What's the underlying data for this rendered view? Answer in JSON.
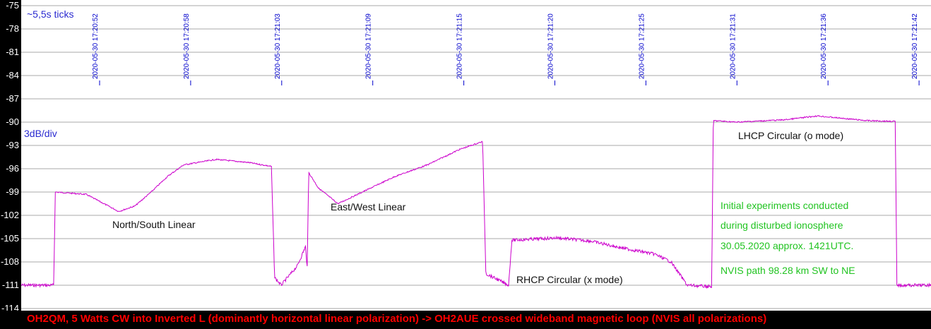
{
  "chart_data": {
    "type": "line",
    "ylim": [
      -114,
      -75
    ],
    "y_ticks": [
      "-75",
      "-78",
      "-81",
      "-84",
      "-87",
      "-90",
      "-93",
      "-96",
      "-99",
      "-102",
      "-105",
      "-108",
      "-111",
      "-114"
    ],
    "grid": "horizontal",
    "time_ticks": [
      "2020-05-30 17:20:52",
      "2020-05-30 17:20:58",
      "2020-05-30 17:21:03",
      "2020-05-30 17:21:09",
      "2020-05-30 17:21:15",
      "2020-05-30 17:21:20",
      "2020-05-30 17:21:25",
      "2020-05-30 17:21:31",
      "2020-05-30 17:21:36",
      "2020-05-30 17:21:42"
    ],
    "x_range_s": [
      0,
      56
    ],
    "series": [
      {
        "color": "#cc00cc",
        "points": [
          [
            0,
            -111
          ],
          [
            2,
            -111
          ],
          [
            2.1,
            -99
          ],
          [
            4,
            -99.3
          ],
          [
            6,
            -101.5
          ],
          [
            7,
            -100.8
          ],
          [
            8,
            -99
          ],
          [
            9,
            -97
          ],
          [
            10,
            -95.5
          ],
          [
            12,
            -94.8
          ],
          [
            14,
            -95.2
          ],
          [
            15.4,
            -95.7
          ],
          [
            15.6,
            -110
          ],
          [
            16,
            -111
          ],
          [
            17,
            -108.5
          ],
          [
            17.5,
            -106
          ],
          [
            17.6,
            -109
          ],
          [
            17.7,
            -96.5
          ],
          [
            18.3,
            -98.5
          ],
          [
            19.5,
            -100.5
          ],
          [
            21,
            -99
          ],
          [
            23,
            -97
          ],
          [
            25,
            -95.5
          ],
          [
            27,
            -93.5
          ],
          [
            28.4,
            -92.5
          ],
          [
            28.6,
            -109.5
          ],
          [
            30,
            -111
          ],
          [
            30.2,
            -105.2
          ],
          [
            33,
            -104.9
          ],
          [
            35,
            -105.3
          ],
          [
            37,
            -106.2
          ],
          [
            39,
            -107
          ],
          [
            40,
            -108
          ],
          [
            41,
            -111
          ],
          [
            42.5,
            -111.2
          ],
          [
            42.6,
            -89.8
          ],
          [
            44,
            -90
          ],
          [
            47,
            -89.7
          ],
          [
            49,
            -89.2
          ],
          [
            52,
            -89.8
          ],
          [
            53.8,
            -89.9
          ],
          [
            53.9,
            -111
          ],
          [
            56,
            -111
          ]
        ]
      }
    ],
    "annotations": [
      "~5,5s ticks",
      "3dB/div",
      "North/South Linear",
      "East/West Linear",
      "RHCP Circular (x mode)",
      "LHCP Circular (o mode)",
      "Initial experiments conducted",
      "during disturbed ionosphere",
      "30.05.2020 approx. 1421UTC.",
      "NVIS path 98.28 km SW to NE"
    ]
  },
  "caption": "OH2QM, 5 Watts CW into Inverted L (dominantly horizontal linear polarization) -> OH2AUE crossed wideband magnetic loop (NVIS all polarizations)",
  "colors": {
    "trace": "#cc00cc",
    "left_bar": "#000000",
    "tick_text": "#0000cc",
    "annotation_blue": "#2a2ad0",
    "annotation_green": "#22c422",
    "caption_text": "#ff0000"
  }
}
